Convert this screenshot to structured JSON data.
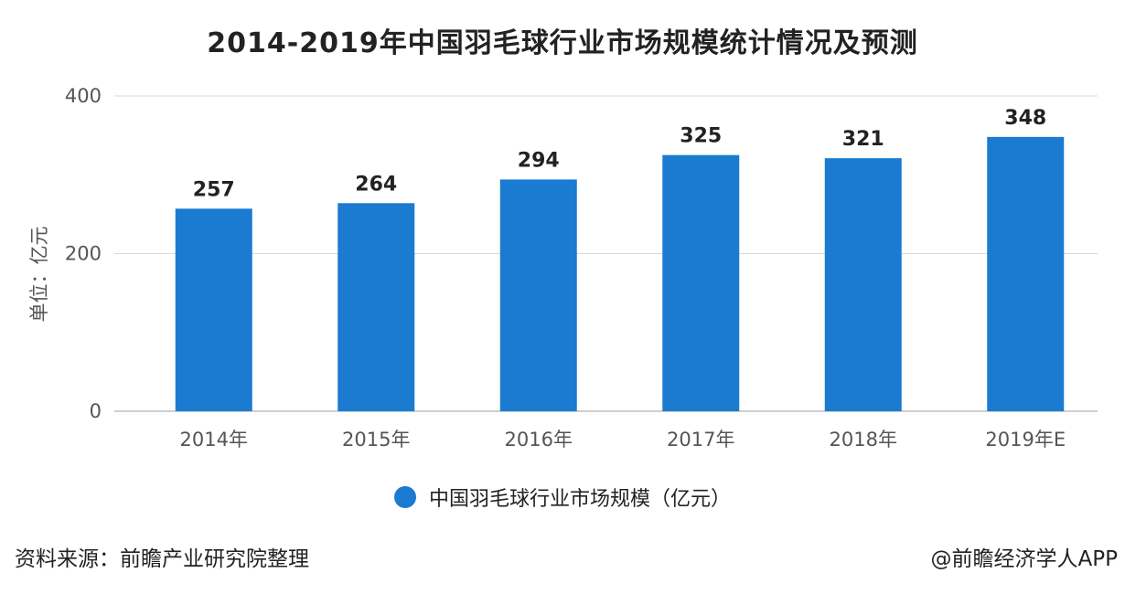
{
  "title": "2014-2019年中国羽毛球行业市场规模统计情况及预测",
  "ylabel": "单位：亿元",
  "legend_label": "中国羽毛球行业市场规模（亿元）",
  "footer": {
    "source": "资料来源：前瞻产业研究院整理",
    "credit": "@前瞻经济学人APP"
  },
  "colors": {
    "bar": "#1a7bd1",
    "grid": "#d9d9d9",
    "axis_text": "#555555",
    "label_text": "#222222"
  },
  "chart_data": {
    "type": "bar",
    "title": "2014-2019年中国羽毛球行业市场规模统计情况及预测",
    "categories": [
      "2014年",
      "2015年",
      "2016年",
      "2017年",
      "2018年",
      "2019年E"
    ],
    "series": [
      {
        "name": "中国羽毛球行业市场规模（亿元）",
        "values": [
          257,
          264,
          294,
          325,
          321,
          348
        ]
      }
    ],
    "ylabel": "单位：亿元",
    "xlabel": "",
    "ylim": [
      0,
      400
    ],
    "yticks": [
      0,
      200,
      400
    ],
    "grid": true,
    "data_labels": true,
    "legend_position": "bottom-center"
  }
}
